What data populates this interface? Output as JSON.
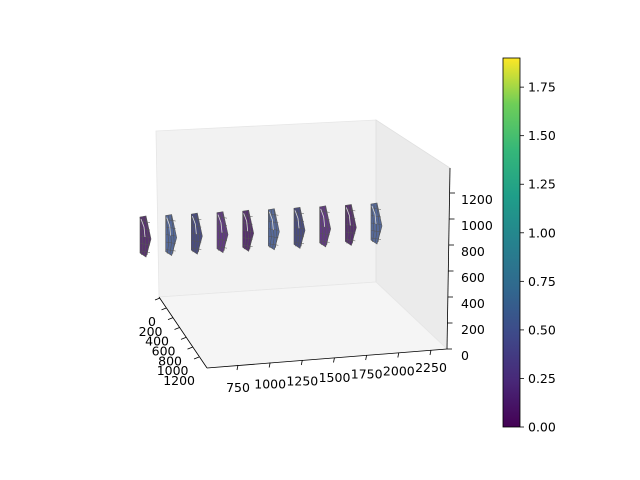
{
  "chart_data": {
    "type": "3d-surface",
    "title": "",
    "colormap": "viridis",
    "axes": {
      "x": {
        "label": "",
        "ticks": [
          "750",
          "1000",
          "1250",
          "1500",
          "1750",
          "2000",
          "2250"
        ]
      },
      "y": {
        "label": "",
        "ticks": [
          "0",
          "200",
          "400",
          "600",
          "800",
          "1000",
          "1200"
        ]
      },
      "z": {
        "label": "",
        "ticks": [
          "0",
          "200",
          "400",
          "600",
          "800",
          "1000",
          "1200"
        ]
      }
    },
    "colorbar": {
      "range": [
        0.0,
        1.9
      ],
      "ticks": [
        "0.00",
        "0.25",
        "0.50",
        "0.75",
        "1.00",
        "1.25",
        "1.50",
        "1.75"
      ]
    },
    "surface_groups": [
      {
        "x": 640
      },
      {
        "x": 800
      },
      {
        "x": 960
      },
      {
        "x": 1120
      },
      {
        "x": 1280
      },
      {
        "x": 1440
      },
      {
        "x": 1600
      },
      {
        "x": 1760
      },
      {
        "x": 1920
      },
      {
        "x": 2080
      }
    ],
    "colors": {
      "pane_back": "#f2f2f2",
      "pane_side": "#ebebeb",
      "pane_floor": "#f5f5f5",
      "wire": "#555555"
    }
  }
}
